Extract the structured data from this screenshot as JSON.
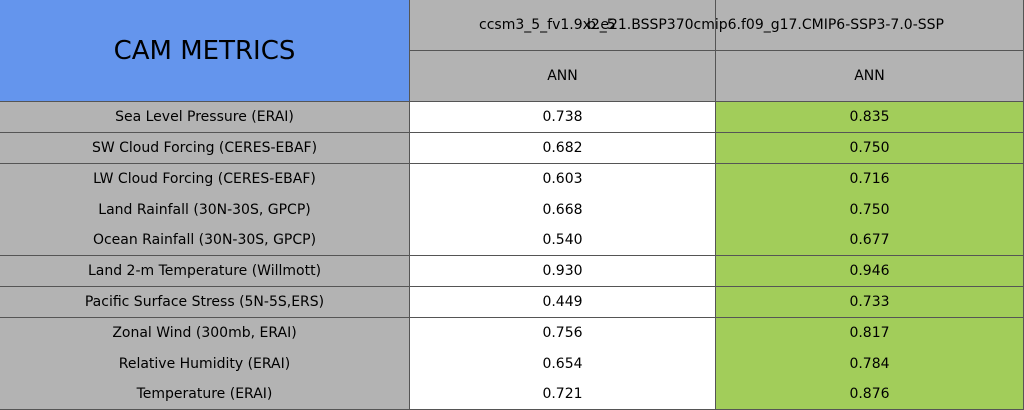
{
  "title": "CAM METRICS",
  "columns": [
    {
      "case": "ccsm3_5_fv1.9x2_5",
      "period": "ANN"
    },
    {
      "case": "b.e21.BSSP370cmip6.f09_g17.CMIP6-SSP3-7.0-SSP",
      "period": "ANN"
    }
  ],
  "colors": {
    "title_bg": "#6495ed",
    "header_bg": "#b3b3b3",
    "better_bg": "#a2cd5a"
  },
  "rows": [
    {
      "metric": "Sea Level Pressure (ERAI)",
      "v1": "0.738",
      "v2": "0.835"
    },
    {
      "metric": "SW Cloud Forcing (CERES-EBAF)",
      "v1": "0.682",
      "v2": "0.750"
    },
    {
      "metric": "LW Cloud Forcing (CERES-EBAF)",
      "v1": "0.603",
      "v2": "0.716"
    },
    {
      "metric": "Land Rainfall (30N-30S, GPCP)",
      "v1": "0.668",
      "v2": "0.750"
    },
    {
      "metric": "Ocean Rainfall (30N-30S, GPCP)",
      "v1": "0.540",
      "v2": "0.677"
    },
    {
      "metric": "Land 2-m Temperature (Willmott)",
      "v1": "0.930",
      "v2": "0.946"
    },
    {
      "metric": "Pacific Surface Stress (5N-5S,ERS)",
      "v1": "0.449",
      "v2": "0.733"
    },
    {
      "metric": "Zonal Wind (300mb, ERAI)",
      "v1": "0.756",
      "v2": "0.817"
    },
    {
      "metric": "Relative Humidity (ERAI)",
      "v1": "0.654",
      "v2": "0.784"
    },
    {
      "metric": "Temperature (ERAI)",
      "v1": "0.721",
      "v2": "0.876"
    }
  ]
}
